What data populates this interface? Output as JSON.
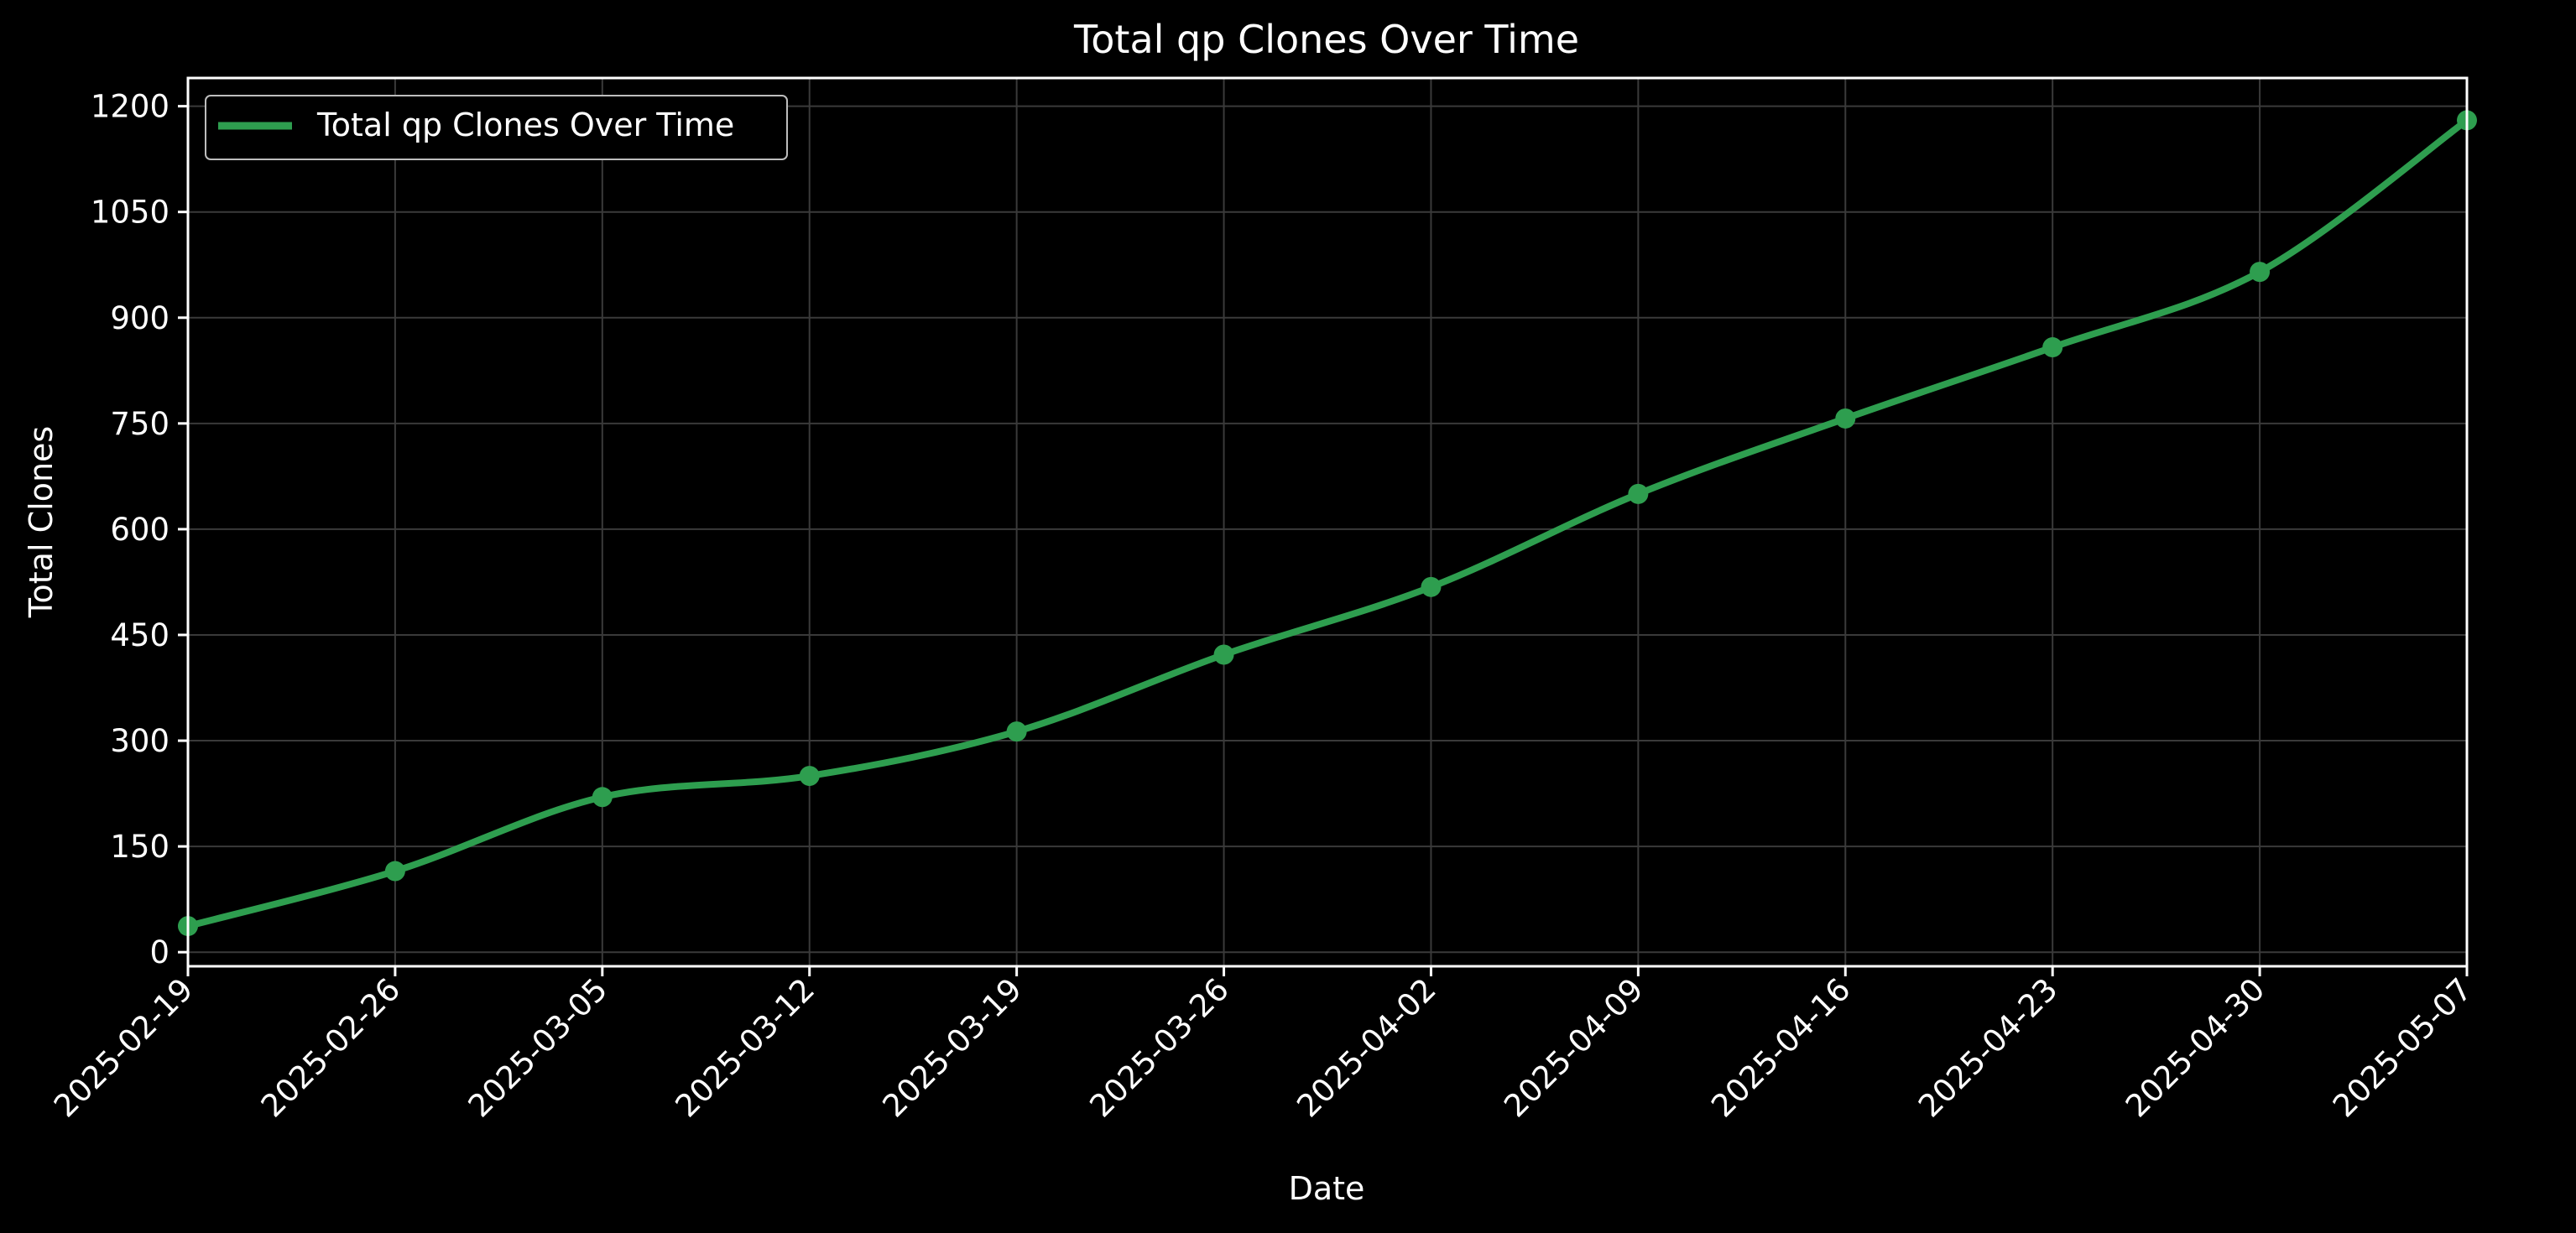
{
  "chart_data": {
    "type": "line",
    "title": "Total qp Clones Over Time",
    "xlabel": "Date",
    "ylabel": "Total Clones",
    "x": [
      "2025-02-19",
      "2025-02-26",
      "2025-03-05",
      "2025-03-12",
      "2025-03-19",
      "2025-03-26",
      "2025-04-02",
      "2025-04-09",
      "2025-04-16",
      "2025-04-23",
      "2025-04-30",
      "2025-05-07"
    ],
    "series": [
      {
        "name": "Total qp Clones Over Time",
        "color": "#2e9e4f",
        "values": [
          37,
          115,
          220,
          250,
          313,
          422,
          518,
          650,
          757,
          858,
          965,
          1180
        ]
      }
    ],
    "yticks": [
      0,
      150,
      300,
      450,
      600,
      750,
      900,
      1050,
      1200
    ],
    "ylim": [
      -20,
      1240
    ],
    "grid": true,
    "smooth": true,
    "markers": true,
    "legend_position": "top-left",
    "background": "#000000",
    "axis_color": "#ffffff",
    "grid_color": "#3a3a3a"
  }
}
